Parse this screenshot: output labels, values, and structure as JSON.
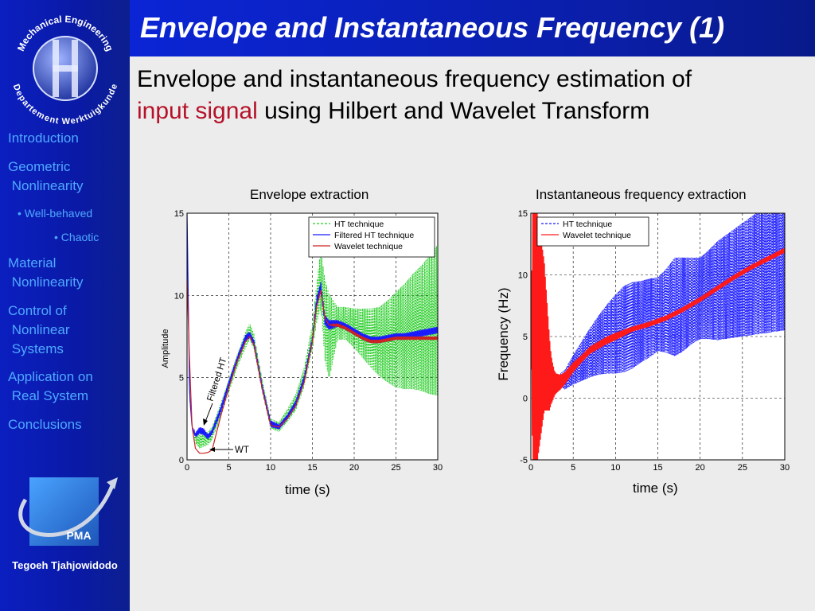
{
  "title": "Envelope and Instantaneous Frequency (1)",
  "subtitle": {
    "line1": "Envelope and instantaneous frequency estimation of",
    "highlight": "input signal",
    "rest": "using Hilbert and Wavelet Transform"
  },
  "logo": {
    "text_top": "Mechanical Engineering",
    "text_bottom": "Departement Werktuigkunde"
  },
  "nav": [
    "Introduction",
    "Geometric\n Nonlinearity",
    "• Well-behaved",
    "• Chaotic",
    "Material\n Nonlinearity",
    "Control of\n Nonlinear\n Systems",
    "Application on\n Real System",
    "Conclusions"
  ],
  "pma_label": "PMA",
  "author": "Tegoeh Tjahjowidodo",
  "colors": {
    "sidebar": "#0b1fc0",
    "nav_text": "#4fa9ff",
    "highlight": "#b5122a"
  },
  "chart_data": [
    {
      "type": "line",
      "title": "Envelope extraction",
      "xlabel": "time (s)",
      "ylabel": "Amplitude",
      "xlim": [
        0,
        30
      ],
      "ylim": [
        0,
        15
      ],
      "xticks": [
        "0",
        "5",
        "10",
        "15",
        "20",
        "25",
        "30"
      ],
      "yticks": [
        "0",
        "5",
        "10",
        "15"
      ],
      "grid": true,
      "legend": "top-right",
      "annotations": [
        "Filtered HT",
        "WT"
      ],
      "series": [
        {
          "name": "HT technique",
          "color": "#22cc22",
          "style": "dashed",
          "x": [
            0,
            0.3,
            0.6,
            1,
            1.5,
            2,
            2.5,
            3,
            4,
            5,
            6,
            7,
            7.5,
            8,
            9,
            10,
            11,
            12,
            13,
            14,
            15,
            15.5,
            16,
            16.5,
            17,
            18,
            19,
            20,
            21,
            22,
            23,
            24,
            25,
            26,
            27,
            28,
            29,
            30
          ],
          "y": [
            15,
            4,
            2,
            1.3,
            1.2,
            1.2,
            1.3,
            1.6,
            3,
            4.5,
            6,
            7.3,
            7.8,
            7.2,
            4.5,
            2.2,
            2,
            2.7,
            3.5,
            5,
            7.5,
            9.5,
            11,
            8.5,
            7.5,
            8.3,
            8.3,
            8,
            7.7,
            7.4,
            7.2,
            7.2,
            7.3,
            7.5,
            7.8,
            8,
            8.2,
            8.5
          ],
          "spread": [
            0,
            0,
            0,
            0.3,
            0.5,
            0.4,
            0.4,
            0.4,
            0.4,
            0.4,
            0.4,
            0.5,
            0.5,
            0.5,
            0.4,
            0.3,
            0.3,
            0.4,
            0.5,
            0.6,
            0.8,
            1.2,
            1.8,
            2.5,
            2.6,
            1,
            1,
            1.2,
            1.5,
            1.8,
            2.1,
            2.5,
            2.9,
            3.2,
            3.5,
            3.8,
            4.2,
            4.6
          ]
        },
        {
          "name": "Filtered HT technique",
          "color": "#1a1aff",
          "style": "solid",
          "x": [
            0,
            0.3,
            0.6,
            1,
            1.5,
            2,
            2.5,
            3,
            4,
            5,
            6,
            7,
            7.5,
            8,
            9,
            10,
            11,
            12,
            13,
            14,
            15,
            15.5,
            16,
            16.5,
            17,
            18,
            19,
            20,
            21,
            22,
            23,
            24,
            25,
            26,
            27,
            28,
            29,
            30
          ],
          "y": [
            15,
            4,
            2,
            1.5,
            1.8,
            1.7,
            1.4,
            1.7,
            3,
            4.6,
            6.1,
            7.4,
            7.6,
            7.1,
            4.4,
            2.2,
            2,
            2.6,
            3.4,
            4.9,
            7.3,
            9.6,
            10.5,
            8.5,
            8.2,
            8.3,
            8.1,
            7.8,
            7.5,
            7.3,
            7.3,
            7.4,
            7.5,
            7.5,
            7.6,
            7.7,
            7.8,
            7.9
          ],
          "spread": [
            0,
            0,
            0,
            0.15,
            0.2,
            0.2,
            0.15,
            0.15,
            0.2,
            0.2,
            0.2,
            0.2,
            0.2,
            0.2,
            0.2,
            0.2,
            0.15,
            0.15,
            0.2,
            0.2,
            0.2,
            0.3,
            0.3,
            0.3,
            0.3,
            0.2,
            0.2,
            0.2,
            0.2,
            0.2,
            0.2,
            0.2,
            0.2,
            0.2,
            0.2,
            0.2,
            0.2,
            0.2
          ]
        },
        {
          "name": "Wavelet technique",
          "color": "#cc2222",
          "style": "solid",
          "x": [
            0,
            0.3,
            0.6,
            1,
            1.5,
            2,
            2.5,
            3,
            4,
            5,
            6,
            7,
            7.5,
            8,
            9,
            10,
            11,
            12,
            13,
            14,
            15,
            15.5,
            16,
            16.5,
            17,
            18,
            19,
            20,
            21,
            22,
            23,
            24,
            25,
            26,
            27,
            28,
            29,
            30
          ],
          "y": [
            11,
            6,
            2,
            0.7,
            0.4,
            0.4,
            0.45,
            0.6,
            2.6,
            4.4,
            6,
            7.2,
            7.5,
            7.0,
            4.3,
            2.1,
            2,
            2.5,
            3.3,
            4.7,
            7.2,
            9.3,
            10.3,
            8.6,
            8.2,
            8.2,
            8,
            7.7,
            7.4,
            7.2,
            7.2,
            7.3,
            7.4,
            7.4,
            7.4,
            7.4,
            7.4,
            7.4
          ],
          "spread": [
            0,
            0,
            0,
            0,
            0,
            0,
            0,
            0,
            0,
            0,
            0,
            0,
            0,
            0,
            0,
            0,
            0,
            0,
            0,
            0,
            0,
            0,
            0,
            0,
            0,
            0.1,
            0.1,
            0.1,
            0.1,
            0.1,
            0.1,
            0.1,
            0.1,
            0.1,
            0.1,
            0.1,
            0.1,
            0.1
          ]
        }
      ]
    },
    {
      "type": "line",
      "title": "Instantaneous frequency extraction",
      "xlabel": "time (s)",
      "ylabel": "Frequency (Hz)",
      "xlim": [
        0,
        30
      ],
      "ylim": [
        -5,
        15
      ],
      "xticks": [
        "0",
        "5",
        "10",
        "15",
        "20",
        "25",
        "30"
      ],
      "yticks": [
        "-5",
        "0",
        "5",
        "10",
        "15"
      ],
      "grid": true,
      "legend": "top-left",
      "series": [
        {
          "name": "HT technique",
          "color": "#1a1aff",
          "style": "dashed",
          "x": [
            0,
            0.5,
            1,
            1.5,
            2,
            2.5,
            3,
            3.5,
            4,
            5,
            6,
            7,
            8,
            9,
            10,
            11,
            12,
            13,
            14,
            15,
            16,
            17,
            18,
            19,
            20,
            21,
            22,
            23,
            24,
            25,
            26,
            27,
            28,
            29,
            30
          ],
          "y": [
            5,
            5,
            5,
            4,
            3,
            2,
            1.5,
            1.5,
            1.5,
            2.3,
            3,
            3.7,
            4.3,
            4.8,
            5.2,
            5.6,
            5.9,
            6.2,
            6.5,
            6.8,
            7.1,
            7.4,
            7.6,
            7.9,
            8.1,
            8.4,
            8.7,
            9,
            9.3,
            9.6,
            9.9,
            10.2,
            10.5,
            10.8,
            11.1
          ],
          "spread": [
            0,
            0,
            0,
            0,
            0,
            0,
            0,
            0.5,
            0.8,
            1.2,
            1.6,
            2,
            2.4,
            2.8,
            3.2,
            3.5,
            3.5,
            3.3,
            3.2,
            3,
            3.4,
            4,
            3.8,
            3.5,
            3.3,
            3.6,
            4,
            4.2,
            4.4,
            4.6,
            4.8,
            5,
            5.2,
            5.4,
            5.6
          ]
        },
        {
          "name": "Wavelet technique",
          "color": "#ff1a1a",
          "style": "solid",
          "x": [
            0,
            0.2,
            0.4,
            0.6,
            0.8,
            1,
            1.2,
            1.4,
            1.6,
            1.8,
            2,
            2.2,
            2.4,
            2.6,
            2.8,
            3,
            3.5,
            4,
            5,
            6,
            7,
            8,
            9,
            10,
            12,
            14,
            16,
            18,
            20,
            22,
            24,
            26,
            28,
            30
          ],
          "y": [
            5,
            5,
            5,
            5,
            5,
            5,
            5,
            5,
            5,
            4,
            3,
            2,
            1.5,
            1.3,
            1.2,
            1.2,
            1.3,
            1.6,
            2.5,
            3.2,
            3.9,
            4.3,
            4.7,
            5.0,
            5.6,
            6.0,
            6.5,
            7.2,
            8.0,
            8.9,
            9.8,
            10.6,
            11.3,
            12.0
          ],
          "spread": [
            0,
            10,
            10,
            10,
            10,
            9,
            8,
            7,
            6,
            5,
            4,
            3,
            2,
            1.5,
            1,
            0.8,
            0.6,
            0.5,
            0.4,
            0.3,
            0.3,
            0.3,
            0.3,
            0.3,
            0.2,
            0.2,
            0.2,
            0.2,
            0.2,
            0.2,
            0.2,
            0.2,
            0.2,
            0.2
          ]
        }
      ]
    }
  ]
}
